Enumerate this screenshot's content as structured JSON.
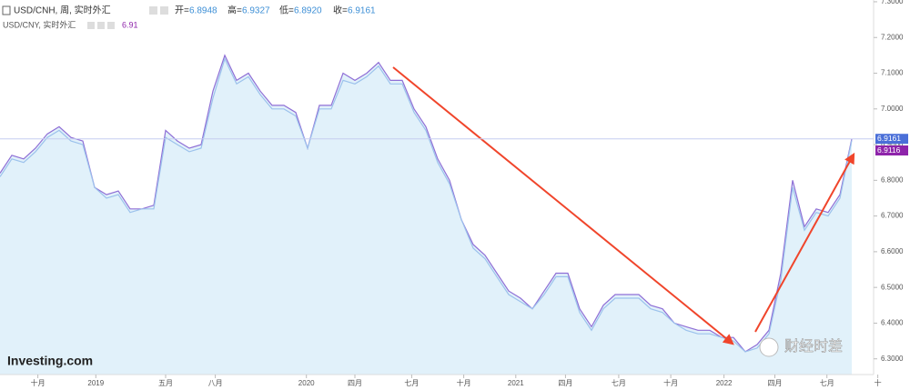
{
  "header": {
    "symbol": "USD/CNH, 周, 实时外汇",
    "open_label": "开=",
    "open": "6.8948",
    "high_label": "高=",
    "high": "6.9327",
    "low_label": "低=",
    "low": "6.8920",
    "close_label": "收=",
    "close": "6.9161",
    "symbol2": "USD/CNY, 实时外汇",
    "price2": "6.91"
  },
  "logo": "Investing.com",
  "watermark": "财经时差",
  "chart_data": {
    "type": "area",
    "series": [
      {
        "name": "USD/CNH",
        "color": "#8f6fd6",
        "fill": "#e1f1fa",
        "values": [
          6.82,
          6.87,
          6.86,
          6.89,
          6.93,
          6.95,
          6.92,
          6.91,
          6.78,
          6.76,
          6.77,
          6.72,
          6.72,
          6.73,
          6.94,
          6.91,
          6.89,
          6.9,
          7.05,
          7.15,
          7.08,
          7.1,
          7.05,
          7.01,
          7.01,
          6.99,
          6.89,
          7.01,
          7.01,
          7.1,
          7.08,
          7.1,
          7.13,
          7.08,
          7.08,
          7.0,
          6.95,
          6.86,
          6.8,
          6.69,
          6.62,
          6.59,
          6.54,
          6.49,
          6.47,
          6.44,
          6.49,
          6.54,
          6.54,
          6.44,
          6.39,
          6.45,
          6.48,
          6.48,
          6.48,
          6.45,
          6.44,
          6.4,
          6.39,
          6.38,
          6.38,
          6.36,
          6.36,
          6.32,
          6.34,
          6.38,
          6.54,
          6.8,
          6.67,
          6.72,
          6.71,
          6.76,
          6.9161
        ],
        "label_color": "#4a6fd8"
      },
      {
        "name": "USD/CNY",
        "color": "#9cc2ec",
        "values": [
          6.81,
          6.86,
          6.85,
          6.88,
          6.92,
          6.94,
          6.91,
          6.9,
          6.78,
          6.75,
          6.76,
          6.71,
          6.72,
          6.72,
          6.92,
          6.9,
          6.88,
          6.89,
          7.03,
          7.14,
          7.07,
          7.09,
          7.04,
          7.0,
          7.0,
          6.98,
          6.89,
          7.0,
          7.0,
          7.08,
          7.07,
          7.09,
          7.12,
          7.07,
          7.07,
          6.99,
          6.94,
          6.85,
          6.79,
          6.69,
          6.61,
          6.58,
          6.53,
          6.48,
          6.46,
          6.44,
          6.48,
          6.53,
          6.53,
          6.43,
          6.38,
          6.44,
          6.47,
          6.47,
          6.47,
          6.44,
          6.43,
          6.4,
          6.38,
          6.37,
          6.37,
          6.36,
          6.35,
          6.32,
          6.33,
          6.37,
          6.52,
          6.78,
          6.66,
          6.71,
          6.7,
          6.75,
          6.9116
        ],
        "label_color": "#8e24aa"
      }
    ],
    "xlim": [
      0,
      74.23
    ],
    "xticks": [
      {
        "value": 3.2,
        "label": "十月"
      },
      {
        "value": 8.1,
        "label": "2019"
      },
      {
        "value": 14,
        "label": "五月"
      },
      {
        "value": 18.2,
        "label": "八月"
      },
      {
        "value": 25.9,
        "label": "2020"
      },
      {
        "value": 30,
        "label": "四月"
      },
      {
        "value": 34.8,
        "label": "七月"
      },
      {
        "value": 39.2,
        "label": "十月"
      },
      {
        "value": 43.6,
        "label": "2021"
      },
      {
        "value": 47.8,
        "label": "四月"
      },
      {
        "value": 52.3,
        "label": "七月"
      },
      {
        "value": 56.7,
        "label": "十月"
      },
      {
        "value": 61.2,
        "label": "2022"
      },
      {
        "value": 65.5,
        "label": "四月"
      },
      {
        "value": 69.9,
        "label": "七月"
      },
      {
        "value": 74.2,
        "label": "十"
      }
    ],
    "ylim": [
      6.256,
      7.305
    ],
    "yticks": [
      {
        "value": 6.3,
        "label": "6.3000"
      },
      {
        "value": 6.4,
        "label": "6.4000"
      },
      {
        "value": 6.5,
        "label": "6.5000"
      },
      {
        "value": 6.6,
        "label": "6.6000"
      },
      {
        "value": 6.7,
        "label": "6.7000"
      },
      {
        "value": 6.8,
        "label": "6.8000"
      },
      {
        "value": 6.9,
        "label": "6.9000"
      },
      {
        "value": 7.0,
        "label": "7.0000"
      },
      {
        "value": 7.1,
        "label": "7.1000"
      },
      {
        "value": 7.2,
        "label": "7.2000"
      },
      {
        "value": 7.3,
        "label": "7.3000"
      }
    ]
  }
}
